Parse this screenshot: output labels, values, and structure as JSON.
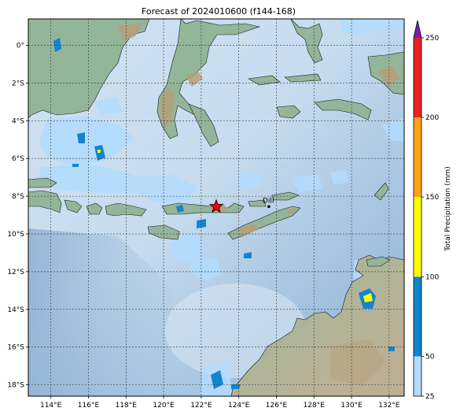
{
  "title": "Forecast of 2024010600 (f144-168)",
  "map": {
    "lon_range": [
      112.8,
      132.8
    ],
    "lat_range": [
      -18.6,
      1.4
    ],
    "lon_ticks": [
      {
        "value": 114,
        "label": "114°E"
      },
      {
        "value": 116,
        "label": "116°E"
      },
      {
        "value": 118,
        "label": "118°E"
      },
      {
        "value": 120,
        "label": "120°E"
      },
      {
        "value": 122,
        "label": "122°E"
      },
      {
        "value": 124,
        "label": "124°E"
      },
      {
        "value": 126,
        "label": "126°E"
      },
      {
        "value": 128,
        "label": "128°E"
      },
      {
        "value": 130,
        "label": "130°E"
      },
      {
        "value": 132,
        "label": "132°E"
      }
    ],
    "lat_ticks": [
      {
        "value": 0,
        "label": "0°"
      },
      {
        "value": -2,
        "label": "2°S"
      },
      {
        "value": -4,
        "label": "4°S"
      },
      {
        "value": -6,
        "label": "6°S"
      },
      {
        "value": -8,
        "label": "8°S"
      },
      {
        "value": -10,
        "label": "10°S"
      },
      {
        "value": -12,
        "label": "12°S"
      },
      {
        "value": -14,
        "label": "14°S"
      },
      {
        "value": -16,
        "label": "16°S"
      },
      {
        "value": -18,
        "label": "18°S"
      }
    ],
    "cities": [
      {
        "name": "Dili",
        "lon": 125.6,
        "lat": -8.55
      }
    ],
    "marker": {
      "type": "star",
      "lon": 122.8,
      "lat": -8.55,
      "color": "#ff0000"
    },
    "colors": {
      "land": "#93b59a",
      "mountain": "#b8a27e",
      "sea_light": "#d3e4f3",
      "sea_deep": "#7aa0c5"
    }
  },
  "colorbar": {
    "label": "Total Precipitation (mm)",
    "levels": [
      25,
      50,
      100,
      150,
      200,
      250
    ],
    "colors": [
      "#b3dcff",
      "#1484cc",
      "#ffff00",
      "#ffa31a",
      "#e82222"
    ],
    "extend_color": "#7a1fb8"
  }
}
